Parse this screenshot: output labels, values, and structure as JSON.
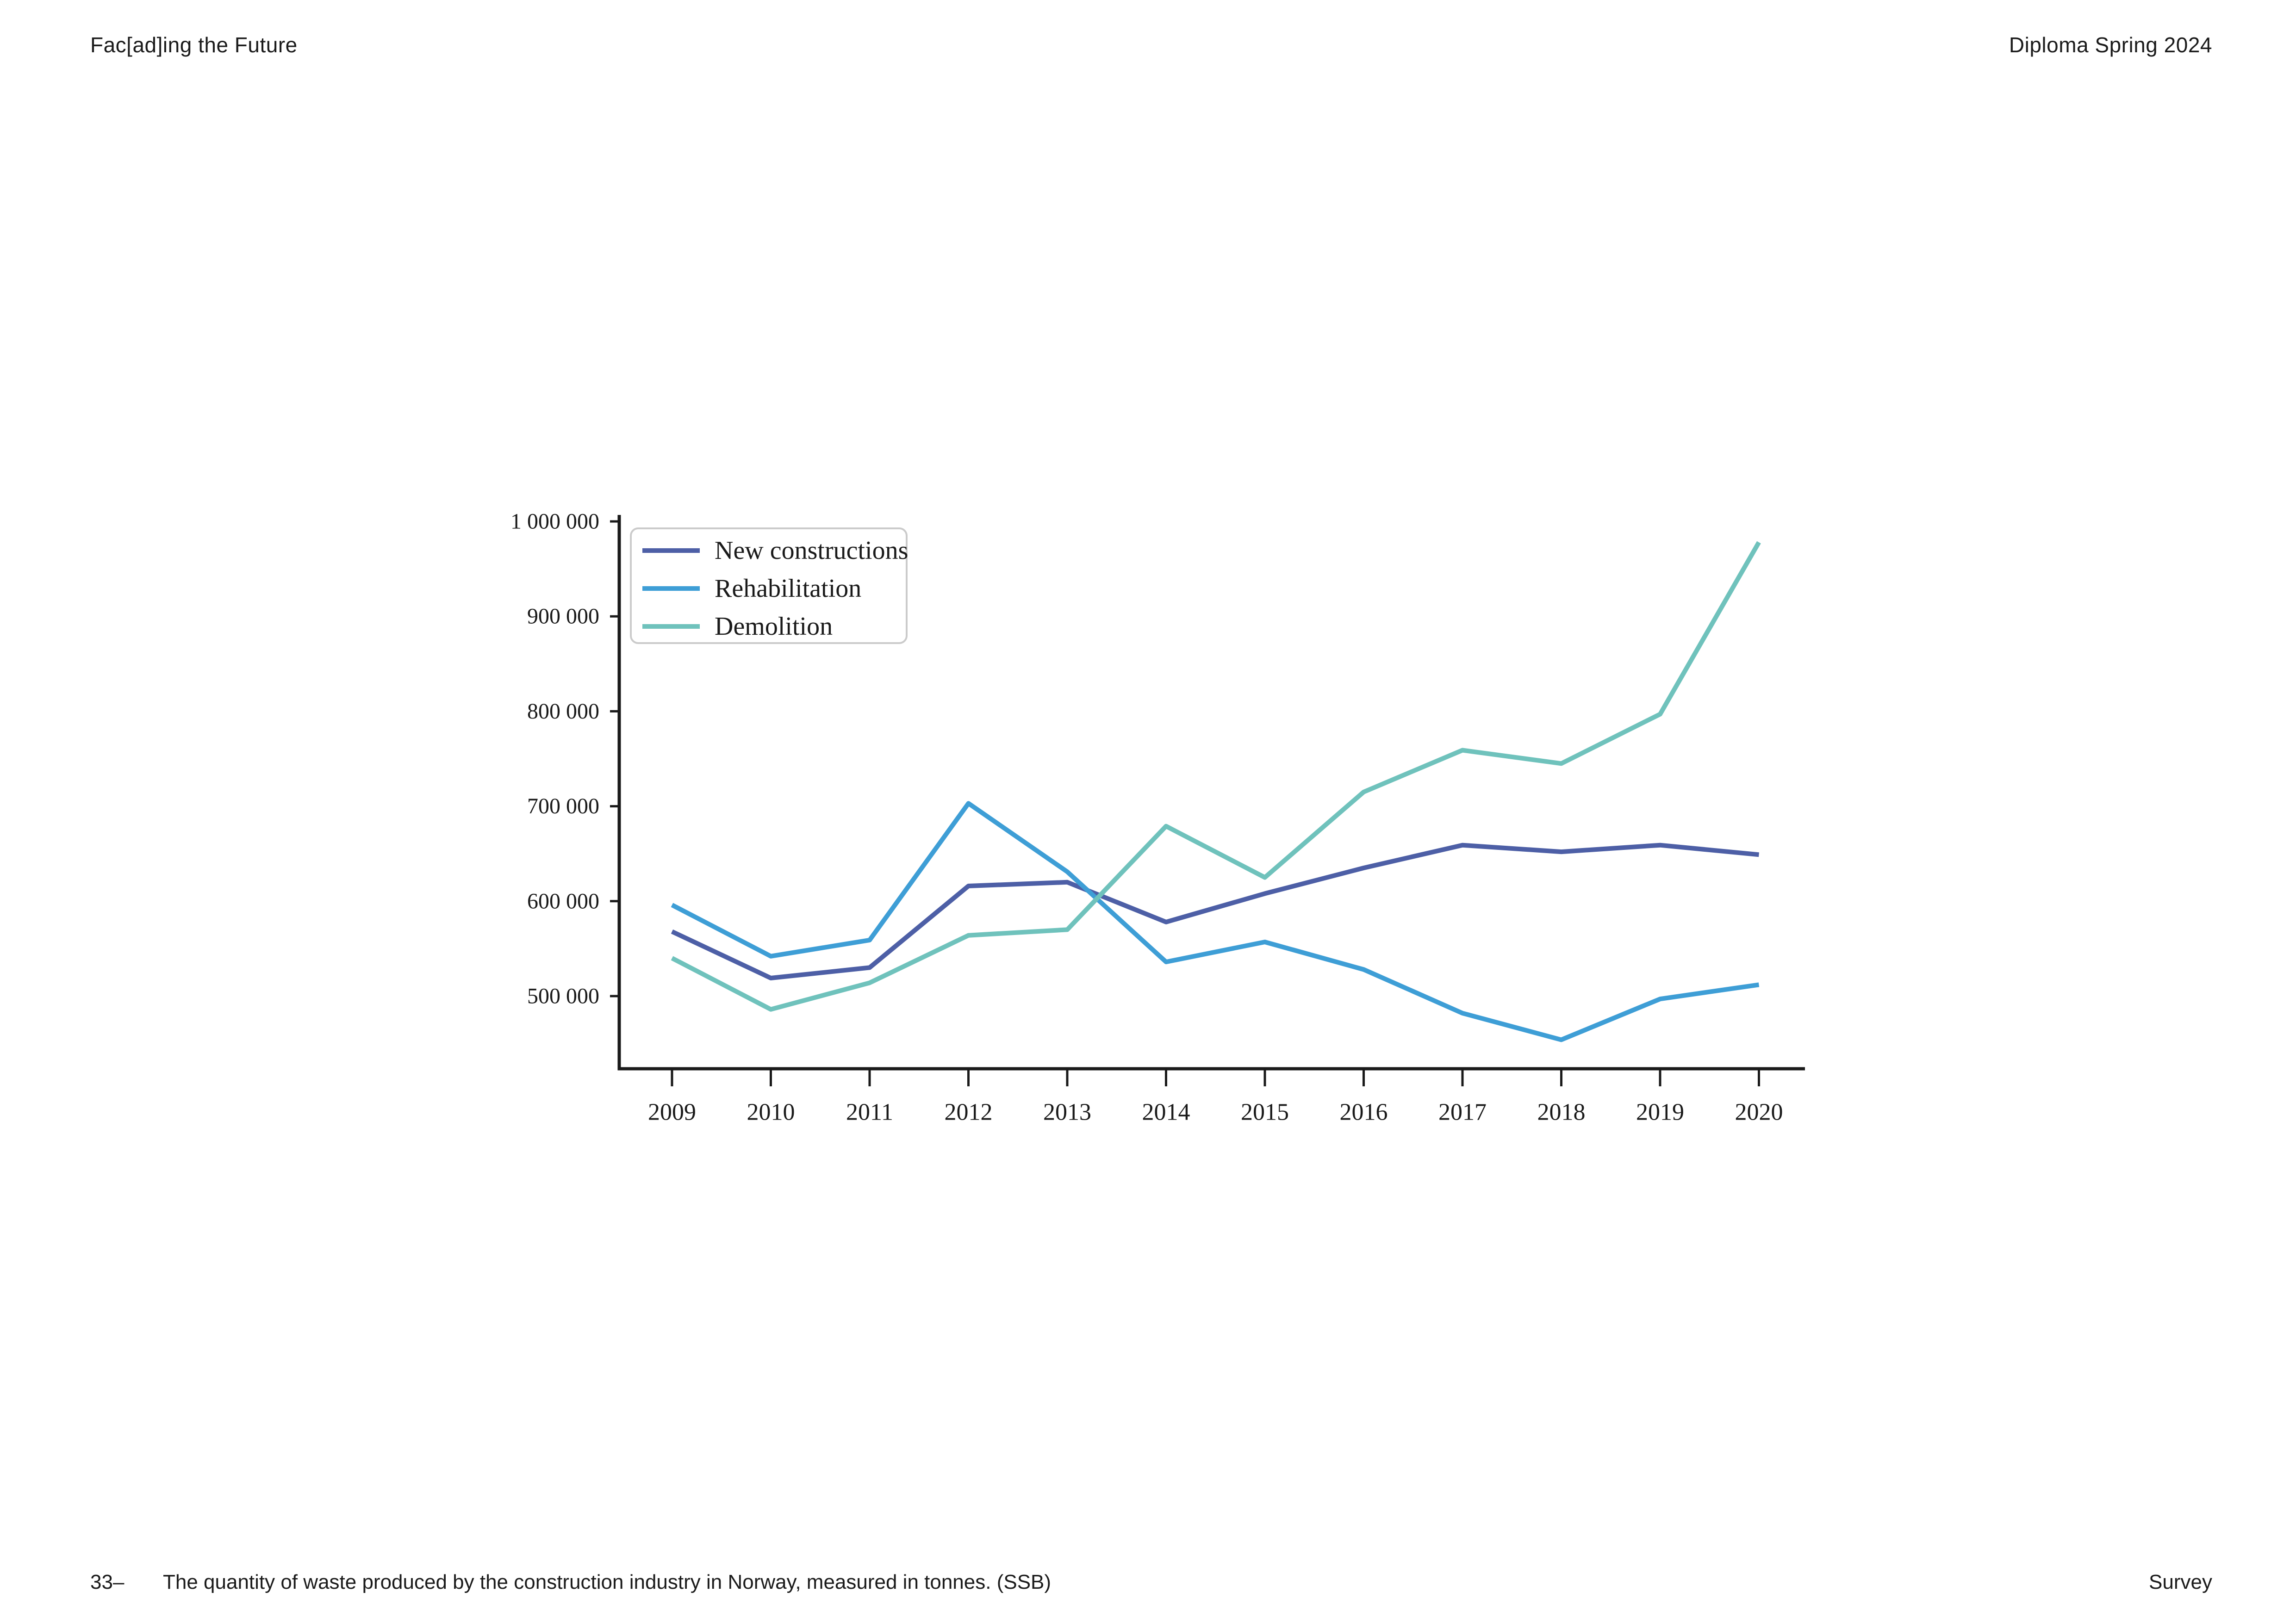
{
  "page": {
    "header": {
      "left": "Fac[ad]ing the Future",
      "right": "Diploma Spring 2024"
    },
    "footer": {
      "figure_number": "33–",
      "caption": "The quantity of waste produced by the construction industry in Norway, measured in tonnes. (SSB)",
      "right": "Survey"
    }
  },
  "chart_data": {
    "type": "line",
    "title": "",
    "xlabel": "",
    "ylabel": "",
    "x": [
      "2009",
      "2010",
      "2011",
      "2012",
      "2013",
      "2014",
      "2015",
      "2016",
      "2017",
      "2018",
      "2019",
      "2020"
    ],
    "series": [
      {
        "name": "New constructions",
        "color": "#4D5FA6",
        "values": [
          568000,
          519000,
          530000,
          616000,
          620000,
          578000,
          608000,
          635000,
          659000,
          652000,
          659000,
          649000
        ]
      },
      {
        "name": "Rehabilitation",
        "color": "#3E9ED6",
        "values": [
          596000,
          542000,
          559000,
          703000,
          631000,
          536000,
          557000,
          528000,
          482000,
          454000,
          497000,
          512000
        ]
      },
      {
        "name": "Demolition",
        "color": "#6FC2BC",
        "values": [
          540000,
          486000,
          514000,
          564000,
          570000,
          679000,
          625000,
          715000,
          759000,
          745000,
          797000,
          978000
        ]
      }
    ],
    "y_ticks": [
      {
        "value": 1000000,
        "label": "1 000 000"
      },
      {
        "value": 900000,
        "label": "900 000"
      },
      {
        "value": 800000,
        "label": "800 000"
      },
      {
        "value": 700000,
        "label": "700 000"
      },
      {
        "value": 600000,
        "label": "600 000"
      },
      {
        "value": 500000,
        "label": "500 000"
      }
    ],
    "ylim": [
      420000,
      1006000
    ],
    "grid": false,
    "legend_position": "upper left",
    "axis_color": "#1a1a1a",
    "legend_border_color": "#cbcbcb"
  }
}
